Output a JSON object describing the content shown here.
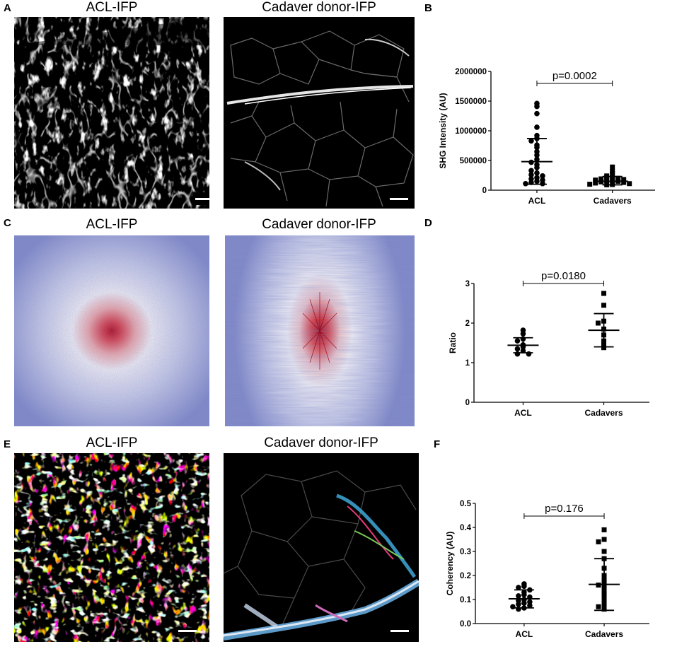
{
  "panels": {
    "A": {
      "letter": "A",
      "titles": [
        "ACL-IFP",
        "Cadaver donor-IFP"
      ]
    },
    "B": {
      "letter": "B"
    },
    "C": {
      "letter": "C",
      "titles": [
        "ACL-IFP",
        "Cadaver donor-IFP"
      ]
    },
    "D": {
      "letter": "D"
    },
    "E": {
      "letter": "E",
      "titles": [
        "ACL-IFP",
        "Cadaver donor-IFP"
      ]
    },
    "F": {
      "letter": "F"
    }
  },
  "chart_data": [
    {
      "panel": "B",
      "type": "scatter",
      "ylabel": "SHG Intensity (AU)",
      "xlabel": "",
      "categories": [
        "ACL",
        "Cadavers"
      ],
      "ylim": [
        0,
        2000000
      ],
      "yticks": [
        0,
        500000,
        1000000,
        1500000,
        2000000
      ],
      "yticklabels": [
        "0",
        "500000",
        "1000000",
        "1500000",
        "2000000"
      ],
      "annotation": "p=0.0002",
      "series": [
        {
          "marker": "circle",
          "values": [
            1460000,
            1410000,
            1290000,
            1060000,
            920000,
            870000,
            830000,
            760000,
            720000,
            650000,
            590000,
            520000,
            470000,
            430000,
            380000,
            330000,
            290000,
            260000,
            240000,
            210000,
            190000,
            170000,
            150000,
            130000,
            110000,
            110000
          ],
          "mean": 480000,
          "sd_upper": 870000,
          "sd_lower": 100000
        },
        {
          "marker": "square",
          "values": [
            390000,
            320000,
            280000,
            240000,
            220000,
            210000,
            200000,
            190000,
            180000,
            170000,
            165000,
            160000,
            150000,
            140000,
            130000,
            120000,
            110000,
            100000,
            95000,
            90000
          ],
          "mean": 150000,
          "sd_upper": 230000,
          "sd_lower": 90000
        }
      ]
    },
    {
      "panel": "D",
      "type": "scatter",
      "ylabel": "Ratio",
      "xlabel": "",
      "categories": [
        "ACL",
        "Cadavers"
      ],
      "ylim": [
        0,
        3
      ],
      "yticks": [
        0,
        1,
        2,
        3
      ],
      "yticklabels": [
        "0",
        "1",
        "2",
        "3"
      ],
      "annotation": "p=0.0180",
      "series": [
        {
          "marker": "circle",
          "values": [
            1.82,
            1.73,
            1.6,
            1.55,
            1.45,
            1.4,
            1.35,
            1.3,
            1.22,
            1.22
          ],
          "mean": 1.44,
          "sd_upper": 1.63,
          "sd_lower": 1.25
        },
        {
          "marker": "square",
          "values": [
            2.75,
            2.45,
            2.05,
            2.0,
            1.85,
            1.7,
            1.55,
            1.5,
            1.38
          ],
          "mean": 1.82,
          "sd_upper": 2.24,
          "sd_lower": 1.4
        }
      ]
    },
    {
      "panel": "F",
      "type": "scatter",
      "ylabel": "Coherency (AU)",
      "xlabel": "",
      "categories": [
        "ACL",
        "Cadavers"
      ],
      "ylim": [
        0,
        0.5
      ],
      "yticks": [
        0,
        0.1,
        0.2,
        0.3,
        0.4,
        0.5
      ],
      "yticklabels": [
        "0.0",
        "0.1",
        "0.2",
        "0.3",
        "0.4",
        "0.5"
      ],
      "annotation": "p=0.176",
      "series": [
        {
          "marker": "circle",
          "values": [
            0.165,
            0.155,
            0.15,
            0.14,
            0.13,
            0.12,
            0.115,
            0.11,
            0.1,
            0.095,
            0.09,
            0.085,
            0.08,
            0.075,
            0.07,
            0.065,
            0.06
          ],
          "mean": 0.103,
          "sd_upper": 0.14,
          "sd_lower": 0.065
        },
        {
          "marker": "square",
          "values": [
            0.39,
            0.35,
            0.34,
            0.3,
            0.27,
            0.23,
            0.2,
            0.18,
            0.17,
            0.16,
            0.15,
            0.13,
            0.12,
            0.1,
            0.08,
            0.07,
            0.06
          ],
          "mean": 0.163,
          "sd_upper": 0.27,
          "sd_lower": 0.055
        }
      ]
    }
  ]
}
